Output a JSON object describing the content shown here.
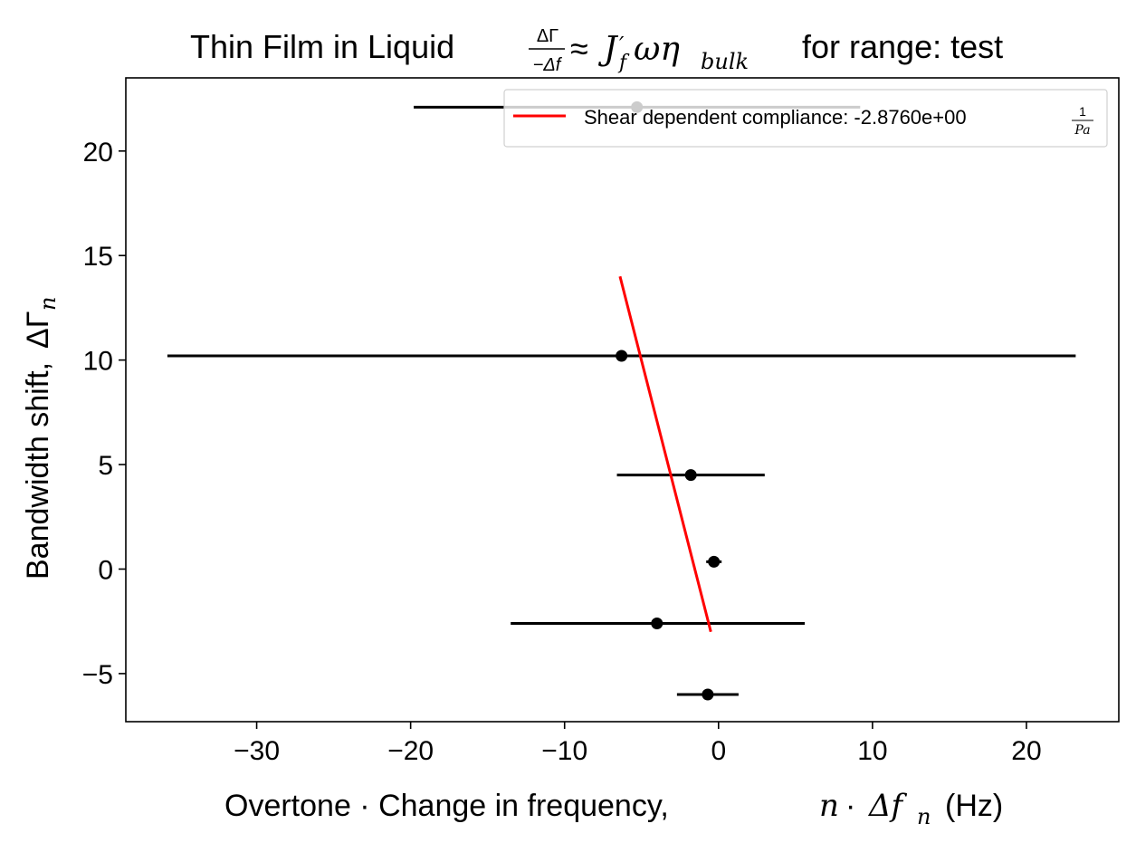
{
  "chart_data": {
    "type": "scatter",
    "title": {
      "prefix": "Thin Film in Liquid",
      "frac_num": "ΔΓ",
      "frac_den": "−Δf",
      "approx": "≈",
      "expr_J": "J",
      "expr_prime": "′",
      "expr_sub_f": "f",
      "expr_omega_eta": "ωη",
      "expr_sub_bulk": "bulk",
      "suffix": "for range: test"
    },
    "xlabel": {
      "text": "Overtone · Change in frequency,",
      "n": "n",
      "dot": "·",
      "delta_f": "Δf",
      "sub_n": "n",
      "unit": "(Hz)"
    },
    "ylabel": {
      "text": "Bandwidth shift,",
      "symbol": "ΔΓ",
      "sub_n": "n"
    },
    "xlim": [
      -38.5,
      26
    ],
    "ylim": [
      -7.3,
      23.5
    ],
    "xticks": [
      -30,
      -20,
      -10,
      0,
      10,
      20
    ],
    "xtick_labels": [
      "−30",
      "−20",
      "−10",
      "0",
      "10",
      "20"
    ],
    "yticks": [
      -5,
      0,
      5,
      10,
      15,
      20
    ],
    "ytick_labels": [
      "−5",
      "0",
      "5",
      "10",
      "15",
      "20"
    ],
    "points": [
      {
        "x": -5.3,
        "y": 22.1,
        "xerr_low": -19.8,
        "xerr_high": 9.2
      },
      {
        "x": -6.3,
        "y": 10.2,
        "xerr_low": -35.8,
        "xerr_high": 23.2
      },
      {
        "x": -1.8,
        "y": 4.5,
        "xerr_low": -6.6,
        "xerr_high": 3.0
      },
      {
        "x": -0.3,
        "y": 0.35,
        "xerr_low": -0.8,
        "xerr_high": 0.2
      },
      {
        "x": -4.0,
        "y": -2.6,
        "xerr_low": -13.5,
        "xerr_high": 5.6
      },
      {
        "x": -0.7,
        "y": -6.0,
        "xerr_low": -2.7,
        "xerr_high": 1.3
      }
    ],
    "fit_line": {
      "x": [
        -6.4,
        -0.5
      ],
      "y": [
        14.0,
        -3.0
      ],
      "color": "#ff0000"
    },
    "legend": {
      "placement": "top-right",
      "label": "Shear dependent compliance: -2.8760e+00",
      "unit_num": "1",
      "unit_den": "Pa"
    },
    "colors": {
      "points": "#000000",
      "fit": "#ff0000"
    }
  }
}
